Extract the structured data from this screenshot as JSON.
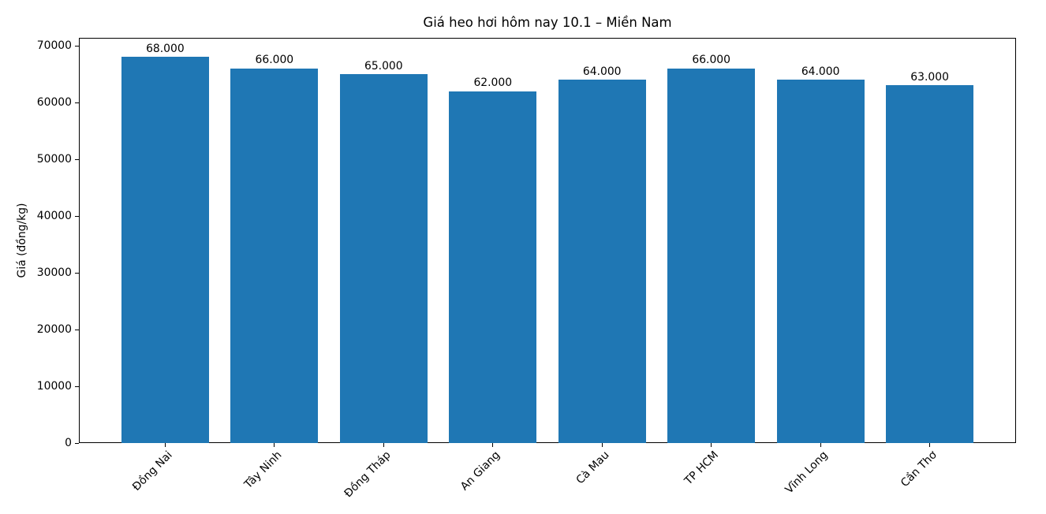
{
  "chart_data": {
    "type": "bar",
    "title": "Giá heo hơi hôm nay 10.1 – Miền Nam",
    "ylabel": "Giá (đồng/kg)",
    "categories": [
      "Đồng Nai",
      "Tây Ninh",
      "Đồng Tháp",
      "An Giang",
      "Cà Mau",
      "TP HCM",
      "Vĩnh Long",
      "Cần Thơ"
    ],
    "values": [
      68000,
      66000,
      65000,
      62000,
      64000,
      66000,
      64000,
      63000
    ],
    "value_labels": [
      "68.000",
      "66.000",
      "65.000",
      "62.000",
      "64.000",
      "66.000",
      "64.000",
      "63.000"
    ],
    "yticks": [
      0,
      10000,
      20000,
      30000,
      40000,
      50000,
      60000,
      70000
    ],
    "ylim": [
      0,
      71400
    ],
    "bar_color": "#1f77b4",
    "axis_color": "#000000",
    "text_color": "#000000",
    "bar_width_fraction": 0.8,
    "x_margin_units": 0.39,
    "xtick_rotation_deg": 45,
    "grid": false,
    "legend_position": "none"
  }
}
